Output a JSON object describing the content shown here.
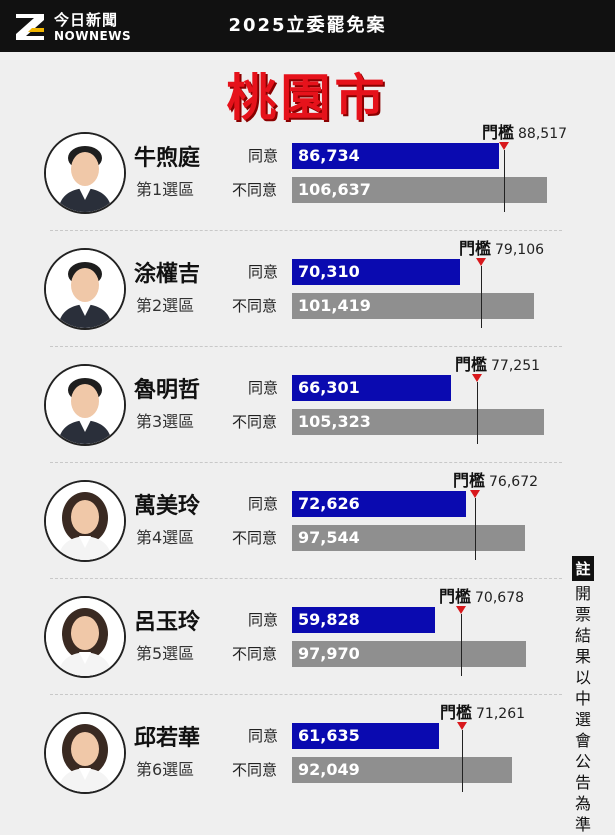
{
  "header": {
    "logo_cn": "今日新聞",
    "logo_en": "NOWNEWS",
    "title": "2025立委罷免案",
    "logo_color": "#f0b400"
  },
  "city": "桃園市",
  "labels": {
    "agree": "同意",
    "disagree": "不同意",
    "threshold": "門檻"
  },
  "note": {
    "head": "註",
    "body": "開票結果以中選會公告為準"
  },
  "colors": {
    "agree": "#0a0ab0",
    "disagree": "#8f8f8f",
    "city": "#e6121b",
    "marker": "#d8181c"
  },
  "chart_data": {
    "type": "bar",
    "orientation": "horizontal",
    "categories": [
      "牛煦庭",
      "涂權吉",
      "魯明哲",
      "萬美玲",
      "呂玉玲",
      "邱若華"
    ],
    "series": [
      {
        "name": "同意",
        "values": [
          86734,
          70310,
          66301,
          72626,
          59828,
          61635
        ]
      },
      {
        "name": "不同意",
        "values": [
          106637,
          101419,
          105323,
          97544,
          97970,
          92049
        ]
      }
    ],
    "threshold": [
      88517,
      79106,
      77251,
      76672,
      70678,
      71261
    ],
    "xlim": [
      0,
      110000
    ]
  },
  "candidates": [
    {
      "name": "牛煦庭",
      "district": "第1選區",
      "agree": "86,734",
      "disagree": "106,637",
      "threshold": "88,517",
      "avatar": "man-portrait"
    },
    {
      "name": "涂權吉",
      "district": "第2選區",
      "agree": "70,310",
      "disagree": "101,419",
      "threshold": "79,106",
      "avatar": "man-portrait"
    },
    {
      "name": "魯明哲",
      "district": "第3選區",
      "agree": "66,301",
      "disagree": "105,323",
      "threshold": "77,251",
      "avatar": "man-portrait"
    },
    {
      "name": "萬美玲",
      "district": "第4選區",
      "agree": "72,626",
      "disagree": "97,544",
      "threshold": "76,672",
      "avatar": "woman-portrait"
    },
    {
      "name": "呂玉玲",
      "district": "第5選區",
      "agree": "59,828",
      "disagree": "97,970",
      "threshold": "70,678",
      "avatar": "woman-portrait"
    },
    {
      "name": "邱若華",
      "district": "第6選區",
      "agree": "61,635",
      "disagree": "92,049",
      "threshold": "71,261",
      "avatar": "woman-portrait"
    }
  ]
}
